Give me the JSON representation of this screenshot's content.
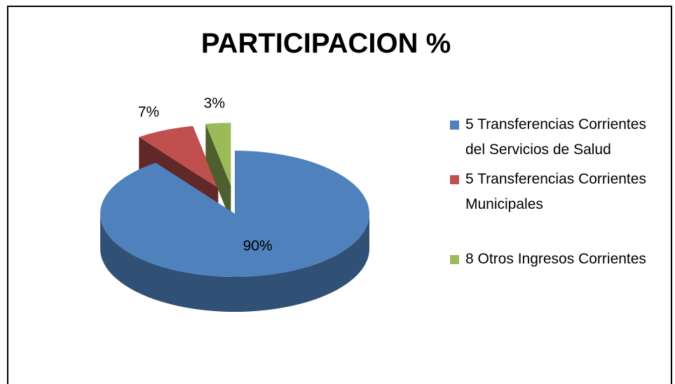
{
  "chart_data": {
    "type": "pie",
    "title": "PARTICIPACION %",
    "categories": [
      "5 Transferencias Corrientes del Servicios de Salud",
      "5 Transferencias Corrientes Municipales",
      "8 Otros Ingresos Corrientes"
    ],
    "values": [
      90,
      7,
      3
    ],
    "value_labels": [
      "90%",
      "7%",
      "3%"
    ],
    "colors": [
      "#4f81bd",
      "#c0504d",
      "#9bbb59"
    ],
    "legend": "right"
  }
}
